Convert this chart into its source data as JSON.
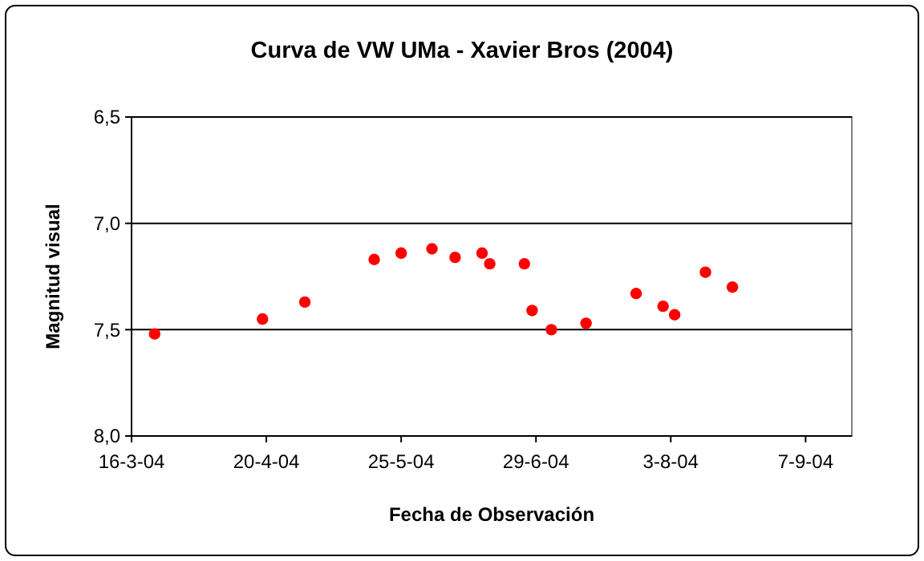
{
  "chart_data": {
    "type": "scatter",
    "title": "Curva de VW UMa - Xavier Bros (2004)",
    "xlabel": "Fecha de Observación",
    "ylabel": "Magnitud visual",
    "x": [
      "2004-03-22",
      "2004-04-19",
      "2004-04-30",
      "2004-05-18",
      "2004-05-25",
      "2004-06-02",
      "2004-06-08",
      "2004-06-15",
      "2004-06-17",
      "2004-06-26",
      "2004-06-28",
      "2004-07-03",
      "2004-07-12",
      "2004-07-25",
      "2004-08-01",
      "2004-08-04",
      "2004-08-12",
      "2004-08-19"
    ],
    "series": [
      {
        "color": "#ff0000",
        "values": [
          7.52,
          7.45,
          7.37,
          7.17,
          7.14,
          7.12,
          7.16,
          7.14,
          7.19,
          7.19,
          7.41,
          7.5,
          7.47,
          7.33,
          7.39,
          7.43,
          7.23,
          7.3
        ]
      }
    ],
    "xlim": [
      "2004-03-16",
      "2004-09-19"
    ],
    "xticks": [
      {
        "value": "2004-03-16",
        "label": "16-3-04"
      },
      {
        "value": "2004-04-20",
        "label": "20-4-04"
      },
      {
        "value": "2004-05-25",
        "label": "25-5-04"
      },
      {
        "value": "2004-06-29",
        "label": "29-6-04"
      },
      {
        "value": "2004-08-03",
        "label": "3-8-04"
      },
      {
        "value": "2004-09-07",
        "label": "7-9-04"
      }
    ],
    "ylim": [
      8.0,
      6.5
    ],
    "yticks": [
      {
        "value": 6.5,
        "label": "6,5"
      },
      {
        "value": 7.0,
        "label": "7,0"
      },
      {
        "value": 7.5,
        "label": "7,5"
      },
      {
        "value": 8.0,
        "label": "8,0"
      }
    ],
    "grid": "y",
    "marker": "circle"
  }
}
